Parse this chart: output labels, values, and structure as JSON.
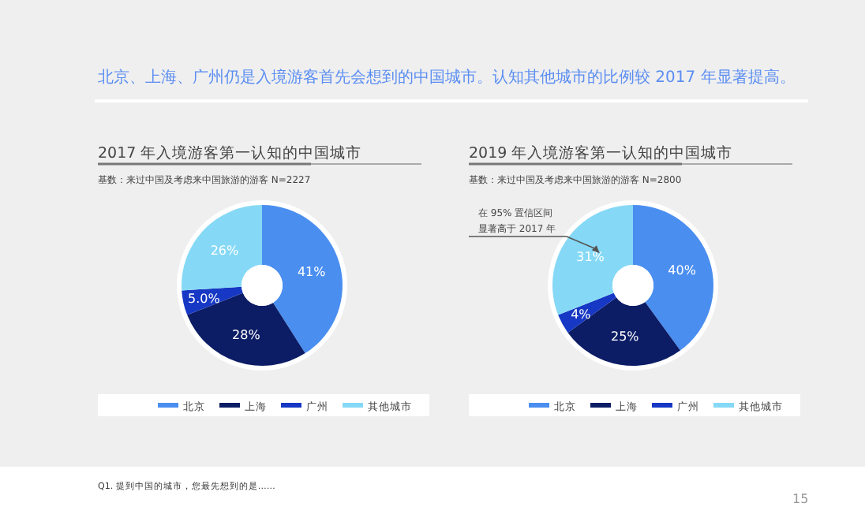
{
  "chart_data": [
    {
      "type": "donut",
      "title": "2017 年入境游客第一认知的中国城市",
      "subtitle": "基数：来过中国及考虑来中国旅游的游客 N=2227",
      "categories": [
        "北京",
        "上海",
        "广州",
        "其他城市"
      ],
      "values": [
        41,
        28,
        5.0,
        26
      ],
      "value_labels": [
        "41%",
        "28%",
        "5.0%",
        "26%"
      ],
      "colors": [
        "#4a8ef0",
        "#0c1d66",
        "#1638c4",
        "#86d9f6"
      ],
      "legend": "bottom",
      "annotations": [
        "北京、上海、广州仍是入境游客首先会想到的中国城市。认知其他城市的比例较 2017 年显著提高。",
        "Q1. 提到中国的城市，您最先想到的是……",
        "15"
      ]
    },
    {
      "type": "donut",
      "title": "2019 年入境游客第一认知的中国城市",
      "subtitle": "基数：来过中国及考虑来中国旅游的游客 N=2800",
      "categories": [
        "北京",
        "上海",
        "广州",
        "其他城市"
      ],
      "values": [
        40,
        25,
        4,
        31
      ],
      "value_labels": [
        "40%",
        "25%",
        "4%",
        "31%"
      ],
      "colors": [
        "#4a8ef0",
        "#0c1d66",
        "#1638c4",
        "#86d9f6"
      ],
      "legend": "bottom",
      "annotations": [
        {
          "text": "在 95% 置信区间显著高于 2017 年",
          "x": "其他城市"
        }
      ]
    }
  ]
}
